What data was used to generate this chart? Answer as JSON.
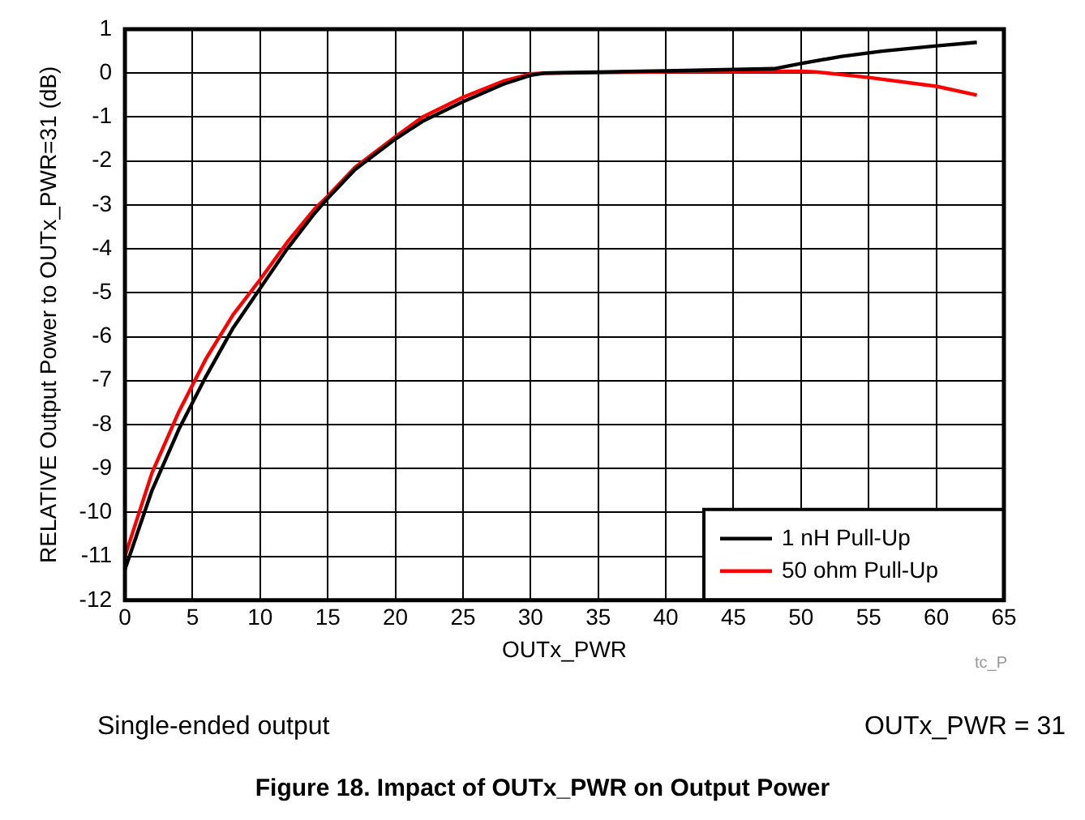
{
  "chart_data": {
    "type": "line",
    "title": "Figure 18. Impact of OUTx_PWR on Output Power",
    "xlabel": "OUTx_PWR",
    "ylabel": "RELATIVE Output Power to OUTx_PWR=31 (dB)",
    "xlim": [
      0,
      65
    ],
    "xticks": [
      0,
      5,
      10,
      15,
      20,
      25,
      30,
      35,
      40,
      45,
      50,
      55,
      60,
      65
    ],
    "ylim": [
      -12,
      1
    ],
    "yticks": [
      -12,
      -11,
      -10,
      -9,
      -8,
      -7,
      -6,
      -5,
      -4,
      -3,
      -2,
      -1,
      0,
      1
    ],
    "grid": true,
    "legend": "bottom right",
    "marker": "none",
    "line_style": "solid",
    "annotations": [
      "tc_P",
      "Single-ended output",
      "OUTx_PWR = 31"
    ],
    "series": [
      {
        "name": "1 nH Pull-Up",
        "color": "#000000",
        "x": [
          0,
          2,
          4,
          6,
          8,
          10,
          12,
          14,
          15,
          17,
          20,
          22,
          25,
          28,
          30,
          31,
          40,
          48,
          50,
          53,
          56,
          60,
          63
        ],
        "values": [
          -11.3,
          -9.5,
          -8.1,
          -6.9,
          -5.8,
          -4.9,
          -4.0,
          -3.2,
          -2.85,
          -2.2,
          -1.5,
          -1.1,
          -0.65,
          -0.25,
          -0.05,
          0,
          0.05,
          0.1,
          0.22,
          0.38,
          0.5,
          0.62,
          0.7
        ]
      },
      {
        "name": "50 ohm Pull-Up",
        "color": "#ff0000",
        "x": [
          0,
          2,
          4,
          6,
          8,
          10,
          12,
          14,
          15,
          17,
          20,
          22,
          25,
          28,
          30,
          31,
          40,
          50,
          51,
          55,
          60,
          63
        ],
        "values": [
          -11.0,
          -9.1,
          -7.7,
          -6.5,
          -5.5,
          -4.7,
          -3.85,
          -3.1,
          -2.8,
          -2.15,
          -1.45,
          -1.0,
          -0.55,
          -0.18,
          -0.02,
          0,
          0.03,
          0.04,
          0.03,
          -0.1,
          -0.3,
          -0.5
        ]
      }
    ]
  }
}
